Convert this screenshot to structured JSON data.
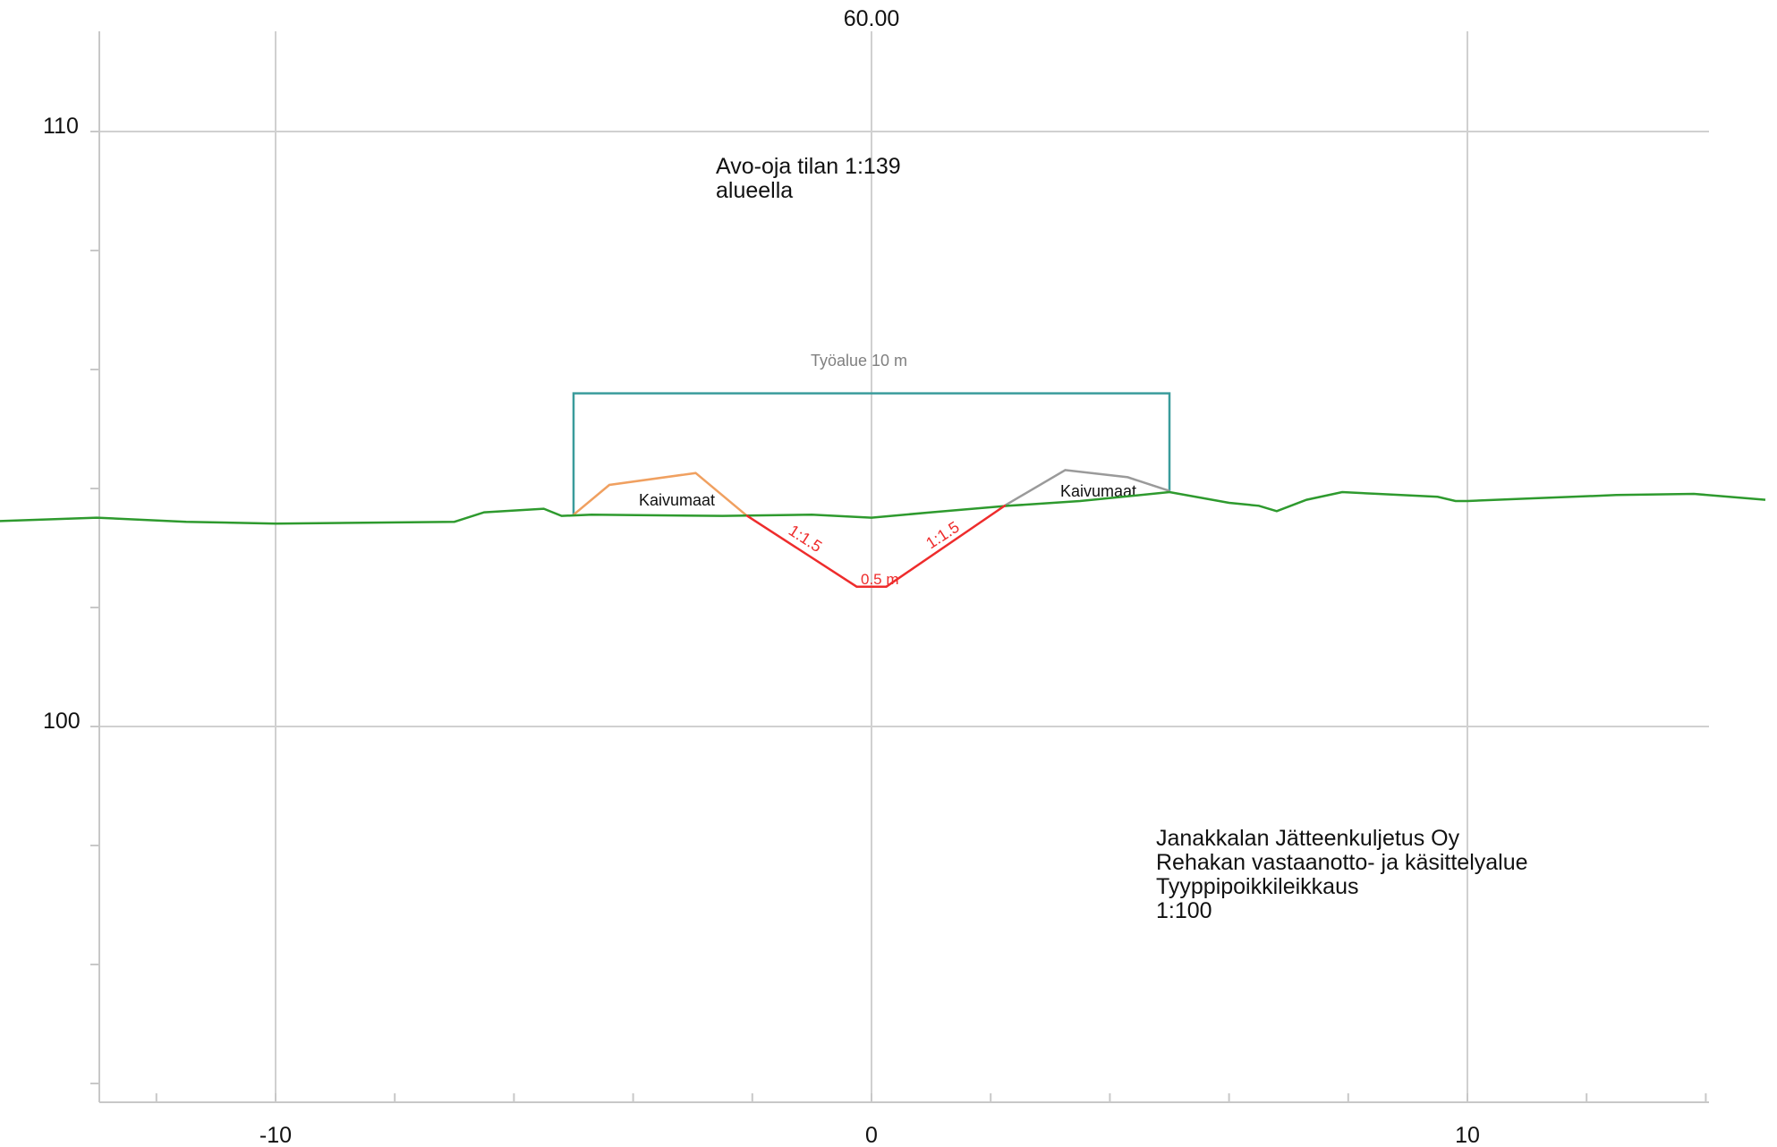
{
  "station_label": "60.00",
  "colors": {
    "ground": "#2e9a2e",
    "ditch": "#ee2c2c",
    "work_area": "#3a9c9c",
    "spoil_left": "#f0a060",
    "spoil_right": "#9a9a9a",
    "grid": "#d0d0d0",
    "work_area_label": "#808080"
  },
  "chart_data": {
    "type": "line",
    "x_ticks": [
      "-10",
      "0",
      "10"
    ],
    "y_ticks": [
      "110",
      "100"
    ],
    "xlim": [
      -13.4,
      15
    ],
    "ylim": [
      93.7,
      111.7
    ],
    "ground": {
      "x": [
        -15,
        -13,
        -11.5,
        -10,
        -7,
        -6.5,
        -5.5,
        -5.2,
        -4.7,
        -2.5,
        -1,
        0,
        1,
        2.3,
        3.5,
        5,
        6,
        6.5,
        6.8,
        7.3,
        7.9,
        8.5,
        9.5,
        9.8,
        10,
        11,
        12.5,
        13.8,
        15
      ],
      "y": [
        103.44,
        103.51,
        103.44,
        103.41,
        103.44,
        103.6,
        103.66,
        103.54,
        103.56,
        103.54,
        103.56,
        103.51,
        103.6,
        103.71,
        103.79,
        103.94,
        103.76,
        103.71,
        103.62,
        103.81,
        103.94,
        103.91,
        103.86,
        103.79,
        103.79,
        103.83,
        103.89,
        103.91,
        103.81
      ]
    },
    "ditch": {
      "label_slope_left": "1:1.5",
      "label_slope_right": "1:1.5",
      "label_bottom": "0.5 m",
      "x": [
        -2.1,
        -0.25,
        0.25,
        2.25
      ],
      "y": [
        103.55,
        102.35,
        102.35,
        103.72
      ]
    },
    "work_area": {
      "label": "Työalue 10 m",
      "x_left": -5,
      "x_right": 5,
      "top": 105.6,
      "bottom_left": 103.56,
      "bottom_right": 103.96
    },
    "spoil_left": {
      "label": "Kaivumaat",
      "x": [
        -5,
        -4.4,
        -2.95,
        -2.1
      ],
      "y": [
        103.56,
        104.06,
        104.26,
        103.55
      ]
    },
    "spoil_right": {
      "label": "Kaivumaat",
      "x": [
        2.25,
        3.25,
        4.3,
        5
      ],
      "y": [
        103.72,
        104.31,
        104.19,
        103.96
      ]
    }
  },
  "notes": {
    "top_note_line1": "Avo-oja tilan 1:139",
    "top_note_line2": "alueella",
    "title_line1": "Janakkalan Jätteenkuljetus Oy",
    "title_line2": "Rehakan vastaanotto- ja käsittelyalue",
    "title_line3": "Tyyppipoikkileikkaus",
    "title_line4": "1:100"
  }
}
